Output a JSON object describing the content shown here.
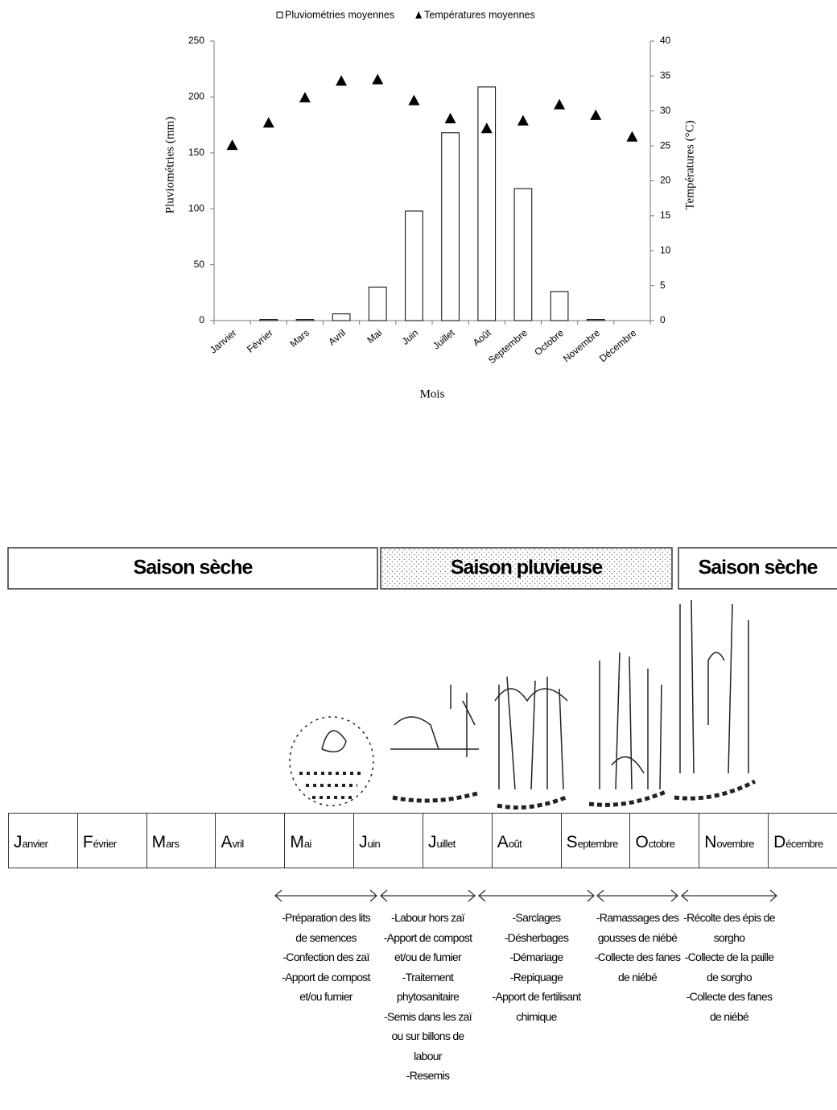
{
  "chart_data": {
    "type": "combo",
    "legend": "top",
    "x_label": "Mois",
    "y_label": "Pluviométries  (mm)",
    "y2_label": "Températures  (°C)",
    "categories": [
      "Janvier",
      "Février",
      "Mars",
      "Avril",
      "Mai",
      "Juin",
      "Juillet",
      "Août",
      "Septembre",
      "Octobre",
      "Novembre",
      "Décembre"
    ],
    "series": [
      {
        "name": "Pluviométries moyennes",
        "type": "bar",
        "color": "#ffffff",
        "values": [
          0,
          1,
          1,
          6,
          30,
          98,
          168,
          209,
          118,
          26,
          1,
          0
        ]
      },
      {
        "name": "Températures moyennes",
        "type": "scatter",
        "axis": "y2",
        "color": "#000000",
        "values": [
          25,
          28.2,
          31.8,
          34.2,
          34.4,
          31.4,
          28.8,
          27.4,
          28.5,
          30.8,
          29.3,
          26.2
        ]
      }
    ],
    "ylim": [
      0,
      250
    ],
    "yticks": [
      0,
      50,
      100,
      150,
      200,
      250
    ],
    "y2lim": [
      0,
      40
    ],
    "y2ticks": [
      0,
      5,
      10,
      15,
      20,
      25,
      30,
      35,
      40
    ],
    "grid": false
  },
  "calendar": {
    "seasons": [
      "Saison sèche",
      "Saison pluvieuse",
      "Saison sèche"
    ],
    "months": [
      "Janvier",
      "Février",
      "Mars",
      "Avril",
      "Mai",
      "Juin",
      "Juillet",
      "Août",
      "Septembre",
      "Octobre",
      "Novembre",
      "Décembre"
    ],
    "activities": [
      [
        "-Préparation des lits de semences",
        "-Confection des zaï",
        "-Apport de compost et/ou fumier"
      ],
      [
        "-Labour hors zaï",
        "-Apport de compost et/ou de fumier",
        "-Traitement phytosanitaire",
        "-Semis dans les zaï ou sur billons de labour",
        "-Resemis"
      ],
      [
        "-Sarclages",
        "-Désherbages",
        "-Démariage",
        "-Repiquage",
        "-Apport de fertilisant chimique"
      ],
      [
        "-Ramassages des gousses de niébé",
        "-Collecte des fanes de niébé"
      ],
      [
        "-Récolte des épis de sorgho",
        "-Collecte de la paille de sorgho",
        "-Collecte des fanes de niébé"
      ]
    ]
  }
}
